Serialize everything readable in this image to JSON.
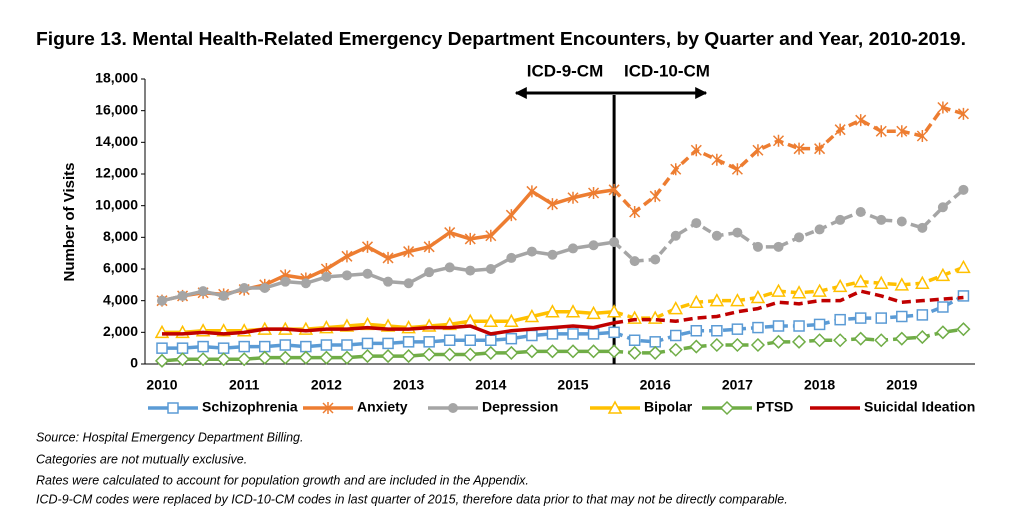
{
  "chart_data": {
    "type": "line",
    "title": "Figure 13. Mental Health-Related Emergency Department Encounters, by Quarter and Year, 2010-2019.",
    "y_label": "Number of Visits",
    "annotations": [
      "ICD-9-CM",
      "ICD-10-CM"
    ],
    "notes": [
      "Source: Hospital Emergency Department Billing.",
      "Categories are not mutually exclusive.",
      "Rates were calculated to account for population growth and are included in the Appendix.",
      "ICD-9-CM codes were replaced by ICD-10-CM codes in last quarter of 2015, therefore data prior to that may not be directly comparable."
    ],
    "code_change_index": 22,
    "categories": [
      "2010",
      null,
      null,
      null,
      "2011",
      null,
      null,
      null,
      "2012",
      null,
      null,
      null,
      "2013",
      null,
      null,
      null,
      "2014",
      null,
      null,
      null,
      "2015",
      null,
      null,
      null,
      "2016",
      null,
      null,
      null,
      "2017",
      null,
      null,
      null,
      "2018",
      null,
      null,
      null,
      "2019",
      null,
      null,
      null
    ],
    "ylim": [
      0,
      18000
    ],
    "yticks": [
      {
        "value": 0,
        "label": "0"
      },
      {
        "value": 2000,
        "label": "2,000"
      },
      {
        "value": 4000,
        "label": "4,000"
      },
      {
        "value": 6000,
        "label": "6,000"
      },
      {
        "value": 8000,
        "label": "8,000"
      },
      {
        "value": 10000,
        "label": "10,000"
      },
      {
        "value": 12000,
        "label": "12,000"
      },
      {
        "value": 14000,
        "label": "14,000"
      },
      {
        "value": 16000,
        "label": "16,000"
      },
      {
        "value": 18000,
        "label": "18,000"
      }
    ],
    "series": [
      {
        "name": "Schizophrenia",
        "color": "#5b9bd5",
        "marker": "square",
        "values": [
          1000,
          1000,
          1100,
          1000,
          1100,
          1100,
          1200,
          1100,
          1200,
          1200,
          1300,
          1300,
          1400,
          1400,
          1500,
          1500,
          1500,
          1600,
          1800,
          1900,
          1900,
          1900,
          2000,
          1500,
          1400,
          1800,
          2100,
          2100,
          2200,
          2300,
          2400,
          2400,
          2500,
          2800,
          2900,
          2900,
          3000,
          3100,
          3600,
          4300
        ]
      },
      {
        "name": "Anxiety",
        "color": "#ed7d31",
        "marker": "star",
        "values": [
          4000,
          4300,
          4500,
          4400,
          4700,
          5000,
          5600,
          5400,
          6000,
          6800,
          7400,
          6700,
          7100,
          7400,
          8300,
          7900,
          8100,
          9400,
          10900,
          10100,
          10500,
          10800,
          11000,
          9600,
          10600,
          12300,
          13500,
          12900,
          12300,
          13500,
          14100,
          13600,
          13600,
          14800,
          15400,
          14700,
          14700,
          14400,
          16200,
          15800
        ]
      },
      {
        "name": "Depression",
        "color": "#a5a5a5",
        "marker": "circle",
        "values": [
          4000,
          4300,
          4600,
          4300,
          4800,
          4800,
          5200,
          5100,
          5500,
          5600,
          5700,
          5200,
          5100,
          5800,
          6100,
          5900,
          6000,
          6700,
          7100,
          6900,
          7300,
          7500,
          7700,
          6500,
          6600,
          8100,
          8900,
          8100,
          8300,
          7400,
          7400,
          8000,
          8500,
          9100,
          9600,
          9100,
          9000,
          8600,
          9900,
          11000
        ]
      },
      {
        "name": "Bipolar",
        "color": "#ffc000",
        "marker": "triangle",
        "values": [
          2000,
          2000,
          2100,
          2100,
          2100,
          2200,
          2200,
          2200,
          2300,
          2400,
          2500,
          2400,
          2300,
          2400,
          2500,
          2700,
          2700,
          2700,
          3000,
          3300,
          3300,
          3200,
          3300,
          2900,
          2900,
          3500,
          3900,
          4000,
          4000,
          4200,
          4600,
          4500,
          4600,
          4900,
          5200,
          5100,
          5000,
          5100,
          5600,
          6100
        ]
      },
      {
        "name": "PTSD",
        "color": "#70ad47",
        "marker": "diamond",
        "values": [
          200,
          300,
          300,
          300,
          300,
          400,
          400,
          400,
          400,
          400,
          500,
          500,
          500,
          600,
          600,
          600,
          700,
          700,
          800,
          800,
          800,
          800,
          800,
          700,
          700,
          900,
          1100,
          1200,
          1200,
          1200,
          1400,
          1400,
          1500,
          1500,
          1600,
          1500,
          1600,
          1700,
          2000,
          2200
        ]
      },
      {
        "name": "Suicidal Ideation",
        "color": "#c00000",
        "marker": "none",
        "values": [
          1900,
          1900,
          2000,
          1900,
          2000,
          2200,
          2200,
          2100,
          2200,
          2200,
          2300,
          2200,
          2200,
          2300,
          2300,
          2400,
          1900,
          2100,
          2200,
          2300,
          2400,
          2300,
          2600,
          2800,
          2800,
          2700,
          2900,
          3000,
          3300,
          3500,
          3900,
          3800,
          4000,
          4000,
          4600,
          4300,
          3900,
          4000,
          4100,
          4200
        ]
      }
    ]
  }
}
